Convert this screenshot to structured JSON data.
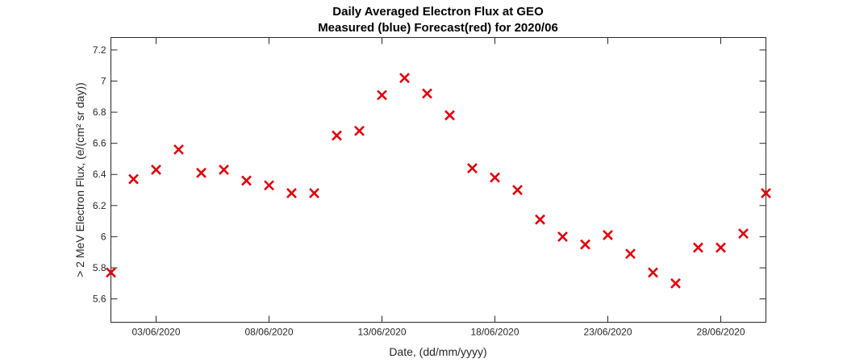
{
  "chart_data": {
    "type": "scatter",
    "title": "Daily Averaged Electron Flux at GEO",
    "subtitle": "Measured (blue) Forecast(red) for 2020/06",
    "xlabel": "Date, (dd/mm/yyyy)",
    "ylabel": "> 2 MeV Electron Flux, (e/(cm² sr day))",
    "x_unit": "day of June 2020",
    "xlim": [
      1,
      30
    ],
    "ylim": [
      5.45,
      7.28
    ],
    "x_ticks": [
      3,
      8,
      13,
      18,
      23,
      28
    ],
    "x_tick_labels": [
      "03/06/2020",
      "08/06/2020",
      "13/06/2020",
      "18/06/2020",
      "23/06/2020",
      "28/06/2020"
    ],
    "y_ticks": [
      5.6,
      5.8,
      6.0,
      6.2,
      6.4,
      6.6,
      6.8,
      7.0,
      7.2
    ],
    "y_tick_labels": [
      "5.6",
      "5.8",
      "6",
      "6.2",
      "6.4",
      "6.6",
      "6.8",
      "7",
      "7.2"
    ],
    "grid": false,
    "series": [
      {
        "marker": "x",
        "color": "#e0000b",
        "x": [
          1,
          2,
          3,
          4,
          5,
          6,
          7,
          8,
          9,
          10,
          11,
          12,
          13,
          14,
          15,
          16,
          17,
          18,
          19,
          20,
          21,
          22,
          23,
          24,
          25,
          26,
          27,
          28,
          29,
          30
        ],
        "y": [
          5.77,
          6.37,
          6.43,
          6.56,
          6.41,
          6.43,
          6.36,
          6.33,
          6.28,
          6.28,
          6.65,
          6.68,
          6.91,
          7.02,
          6.92,
          6.78,
          6.44,
          6.38,
          6.3,
          6.11,
          6.0,
          5.95,
          6.01,
          5.89,
          5.77,
          5.7,
          5.93,
          5.93,
          6.02,
          6.28
        ]
      }
    ]
  }
}
